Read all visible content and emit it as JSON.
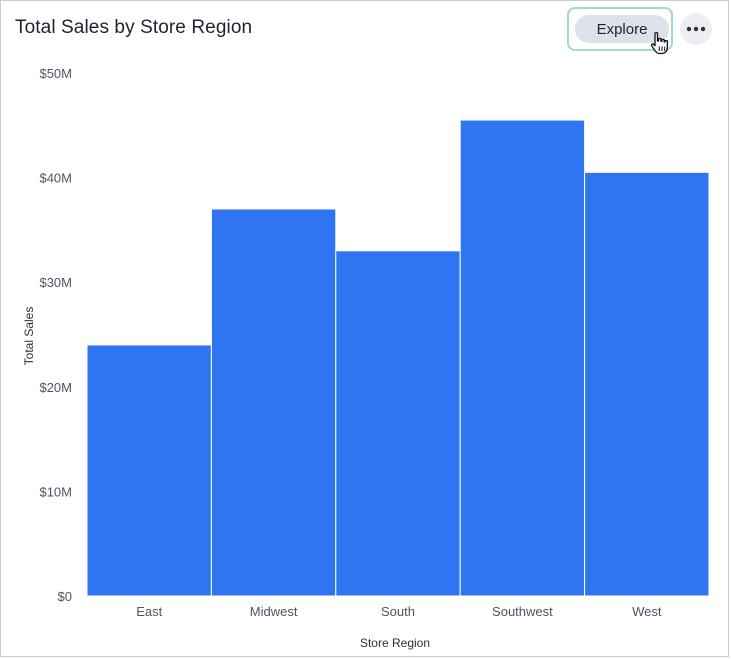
{
  "header": {
    "title": "Total Sales by Store Region",
    "explore_label": "Explore",
    "more_icon": "more-horizontal-icon",
    "cursor_icon": "hand-pointer-icon"
  },
  "colors": {
    "bar": "#2f74f0",
    "explore_focus": "#9fdcc3",
    "explore_bg": "#dde1ea"
  },
  "chart_data": {
    "type": "bar",
    "title": "Total Sales by Store Region",
    "xlabel": "Store Region",
    "ylabel": "Total Sales",
    "categories": [
      "East",
      "Midwest",
      "South",
      "Southwest",
      "West"
    ],
    "values": [
      24.0,
      37.0,
      33.0,
      45.5,
      40.5
    ],
    "value_unit": "$M",
    "ylim": [
      0,
      50
    ],
    "yticks": [
      {
        "value": 0,
        "label": "$0"
      },
      {
        "value": 10,
        "label": "$10M"
      },
      {
        "value": 20,
        "label": "$20M"
      },
      {
        "value": 30,
        "label": "$30M"
      },
      {
        "value": 40,
        "label": "$40M"
      },
      {
        "value": 50,
        "label": "$50M"
      }
    ],
    "grid": false,
    "legend": "none"
  }
}
